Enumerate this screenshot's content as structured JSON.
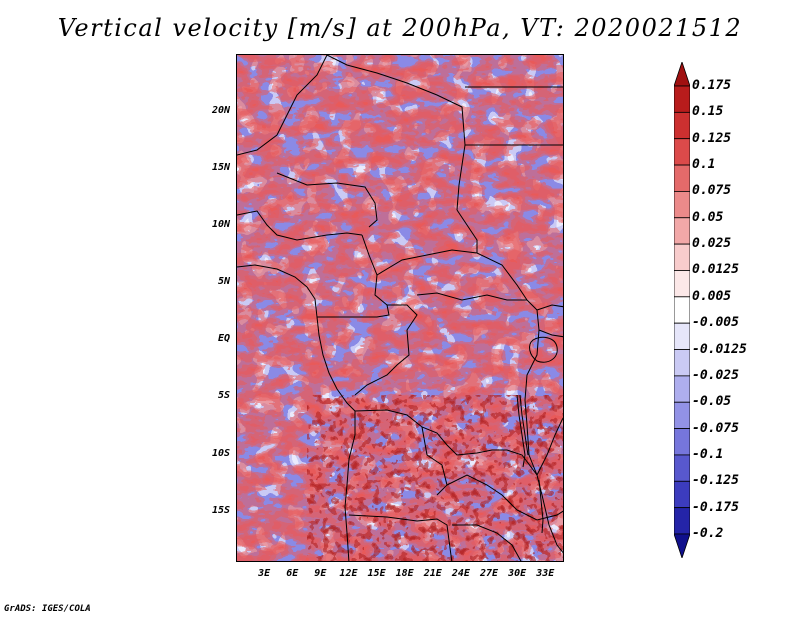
{
  "title": "Vertical velocity [m/s] at 200hPa, VT: 2020021512",
  "credit": "GrADS: IGES/COLA",
  "map": {
    "lat_ticks": [
      "20N",
      "15N",
      "10N",
      "5N",
      "EQ",
      "5S",
      "10S",
      "15S"
    ],
    "lat_values": [
      20,
      15,
      10,
      5,
      0,
      -5,
      -10,
      -15
    ],
    "lon_ticks": [
      "3E",
      "6E",
      "9E",
      "12E",
      "15E",
      "18E",
      "21E",
      "24E",
      "27E",
      "30E",
      "33E"
    ],
    "lon_values": [
      3,
      6,
      9,
      12,
      15,
      18,
      21,
      24,
      27,
      30,
      33
    ],
    "lat_range": [
      -19.5,
      25
    ],
    "lon_range": [
      0,
      35
    ]
  },
  "colorbar": {
    "labels": [
      "0.175",
      "0.15",
      "0.125",
      "0.1",
      "0.075",
      "0.05",
      "0.025",
      "0.0125",
      "0.005",
      "-0.005",
      "-0.0125",
      "-0.025",
      "-0.05",
      "-0.075",
      "-0.1",
      "-0.125",
      "-0.175",
      "-0.2"
    ],
    "colors": [
      "#a01010",
      "#b81c1c",
      "#cc3030",
      "#dc4a4a",
      "#e46a6a",
      "#ec8a8a",
      "#f2a8a8",
      "#f8cccc",
      "#fce8e8",
      "#ffffff",
      "#e6e6fa",
      "#cacaf4",
      "#aeaeee",
      "#9292e6",
      "#7676dc",
      "#5858ce",
      "#3c3cbe",
      "#2424a8",
      "#10108c"
    ]
  }
}
